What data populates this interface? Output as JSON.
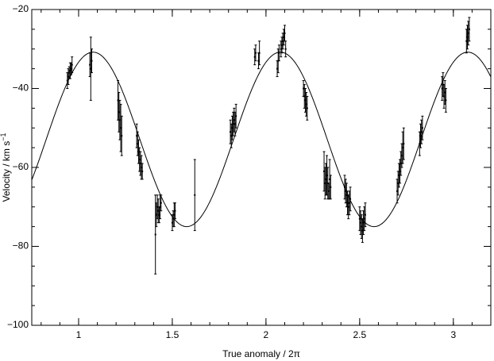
{
  "chart_data": {
    "type": "scatter",
    "title": "",
    "xlabel": "True anomaly / 2π",
    "ylabel_main": "Velocity / km s",
    "ylabel_superscript": "−1",
    "xlim": [
      0.75,
      3.2
    ],
    "ylim": [
      -100,
      -20
    ],
    "x_ticks": [
      1,
      1.5,
      2,
      2.5,
      3
    ],
    "x_tick_labels": [
      "1",
      "1.5",
      "2",
      "2.5",
      "3"
    ],
    "y_ticks": [
      -100,
      -80,
      -60,
      -40,
      -20
    ],
    "y_tick_labels": [
      "−100",
      "−80",
      "−60",
      "−40",
      "−20"
    ],
    "grid": false,
    "legend": "none",
    "model_curve": {
      "center": -52.9,
      "amplitude": 22.1,
      "period": 1.0,
      "phase_max": 0.077
    },
    "points": [
      {
        "x": 0.94,
        "y": -38,
        "err": 2
      },
      {
        "x": 0.945,
        "y": -37,
        "err": 2
      },
      {
        "x": 0.95,
        "y": -36,
        "err": 1.5
      },
      {
        "x": 0.955,
        "y": -35.5,
        "err": 2
      },
      {
        "x": 0.96,
        "y": -35,
        "err": 1.5
      },
      {
        "x": 0.965,
        "y": -34,
        "err": 2
      },
      {
        "x": 1.06,
        "y": -34,
        "err": 3
      },
      {
        "x": 1.065,
        "y": -35,
        "err": 8
      },
      {
        "x": 1.07,
        "y": -33,
        "err": 3
      },
      {
        "x": 1.21,
        "y": -43,
        "err": 5
      },
      {
        "x": 1.215,
        "y": -46,
        "err": 5
      },
      {
        "x": 1.22,
        "y": -48,
        "err": 5
      },
      {
        "x": 1.225,
        "y": -50,
        "err": 6
      },
      {
        "x": 1.23,
        "y": -52,
        "err": 5
      },
      {
        "x": 1.31,
        "y": -52,
        "err": 3
      },
      {
        "x": 1.315,
        "y": -54,
        "err": 3
      },
      {
        "x": 1.32,
        "y": -56,
        "err": 3
      },
      {
        "x": 1.325,
        "y": -58,
        "err": 3
      },
      {
        "x": 1.33,
        "y": -59,
        "err": 3
      },
      {
        "x": 1.335,
        "y": -60,
        "err": 3
      },
      {
        "x": 1.34,
        "y": -61,
        "err": 2
      },
      {
        "x": 1.41,
        "y": -77,
        "err": 10
      },
      {
        "x": 1.415,
        "y": -72,
        "err": 3
      },
      {
        "x": 1.42,
        "y": -70,
        "err": 3
      },
      {
        "x": 1.425,
        "y": -71,
        "err": 3
      },
      {
        "x": 1.43,
        "y": -72,
        "err": 2
      },
      {
        "x": 1.435,
        "y": -70,
        "err": 3
      },
      {
        "x": 1.44,
        "y": -69,
        "err": 2
      },
      {
        "x": 1.5,
        "y": -74,
        "err": 2
      },
      {
        "x": 1.505,
        "y": -73,
        "err": 2
      },
      {
        "x": 1.51,
        "y": -72,
        "err": 3
      },
      {
        "x": 1.515,
        "y": -71,
        "err": 2
      },
      {
        "x": 1.62,
        "y": -67,
        "err": 9
      },
      {
        "x": 1.81,
        "y": -51,
        "err": 3
      },
      {
        "x": 1.815,
        "y": -52,
        "err": 3
      },
      {
        "x": 1.82,
        "y": -50,
        "err": 3
      },
      {
        "x": 1.825,
        "y": -49,
        "err": 3
      },
      {
        "x": 1.83,
        "y": -48,
        "err": 3
      },
      {
        "x": 1.835,
        "y": -49,
        "err": 3
      },
      {
        "x": 1.84,
        "y": -47,
        "err": 3
      },
      {
        "x": 1.94,
        "y": -32,
        "err": 2
      },
      {
        "x": 1.945,
        "y": -31,
        "err": 2
      },
      {
        "x": 1.96,
        "y": -33,
        "err": 2
      },
      {
        "x": 1.965,
        "y": -31,
        "err": 3
      },
      {
        "x": 2.06,
        "y": -35,
        "err": 2
      },
      {
        "x": 2.065,
        "y": -33,
        "err": 3
      },
      {
        "x": 2.07,
        "y": -31,
        "err": 2
      },
      {
        "x": 2.08,
        "y": -30,
        "err": 2
      },
      {
        "x": 2.085,
        "y": -29,
        "err": 2
      },
      {
        "x": 2.09,
        "y": -28,
        "err": 2
      },
      {
        "x": 2.095,
        "y": -27,
        "err": 2
      },
      {
        "x": 2.1,
        "y": -26,
        "err": 2
      },
      {
        "x": 2.105,
        "y": -30,
        "err": 2
      },
      {
        "x": 2.2,
        "y": -40,
        "err": 2
      },
      {
        "x": 2.205,
        "y": -42,
        "err": 3
      },
      {
        "x": 2.21,
        "y": -43,
        "err": 3
      },
      {
        "x": 2.215,
        "y": -44,
        "err": 3
      },
      {
        "x": 2.22,
        "y": -45,
        "err": 3
      },
      {
        "x": 2.31,
        "y": -61,
        "err": 5
      },
      {
        "x": 2.315,
        "y": -64,
        "err": 4
      },
      {
        "x": 2.32,
        "y": -63,
        "err": 4
      },
      {
        "x": 2.325,
        "y": -62,
        "err": 5
      },
      {
        "x": 2.33,
        "y": -64,
        "err": 4
      },
      {
        "x": 2.335,
        "y": -66,
        "err": 2
      },
      {
        "x": 2.34,
        "y": -63,
        "err": 5
      },
      {
        "x": 2.345,
        "y": -65,
        "err": 3
      },
      {
        "x": 2.42,
        "y": -65,
        "err": 3
      },
      {
        "x": 2.425,
        "y": -66,
        "err": 3
      },
      {
        "x": 2.43,
        "y": -67,
        "err": 3
      },
      {
        "x": 2.435,
        "y": -69,
        "err": 3
      },
      {
        "x": 2.44,
        "y": -70,
        "err": 3
      },
      {
        "x": 2.445,
        "y": -69,
        "err": 3
      },
      {
        "x": 2.45,
        "y": -68,
        "err": 3
      },
      {
        "x": 2.5,
        "y": -73,
        "err": 3
      },
      {
        "x": 2.505,
        "y": -74,
        "err": 3
      },
      {
        "x": 2.51,
        "y": -75,
        "err": 3
      },
      {
        "x": 2.515,
        "y": -76,
        "err": 3
      },
      {
        "x": 2.52,
        "y": -74,
        "err": 3
      },
      {
        "x": 2.525,
        "y": -73,
        "err": 3
      },
      {
        "x": 2.53,
        "y": -72,
        "err": 3
      },
      {
        "x": 2.7,
        "y": -66,
        "err": 3
      },
      {
        "x": 2.705,
        "y": -64,
        "err": 3
      },
      {
        "x": 2.71,
        "y": -62,
        "err": 3
      },
      {
        "x": 2.715,
        "y": -61,
        "err": 3
      },
      {
        "x": 2.72,
        "y": -59,
        "err": 3
      },
      {
        "x": 2.725,
        "y": -57,
        "err": 3
      },
      {
        "x": 2.73,
        "y": -55,
        "err": 4
      },
      {
        "x": 2.735,
        "y": -54,
        "err": 4
      },
      {
        "x": 2.82,
        "y": -54,
        "err": 3
      },
      {
        "x": 2.825,
        "y": -52,
        "err": 3
      },
      {
        "x": 2.83,
        "y": -51,
        "err": 3
      },
      {
        "x": 2.835,
        "y": -50,
        "err": 3
      },
      {
        "x": 2.94,
        "y": -40,
        "err": 3
      },
      {
        "x": 2.945,
        "y": -39,
        "err": 3
      },
      {
        "x": 2.95,
        "y": -42,
        "err": 3
      },
      {
        "x": 2.955,
        "y": -41,
        "err": 3
      },
      {
        "x": 2.96,
        "y": -43,
        "err": 3
      },
      {
        "x": 3.07,
        "y": -28,
        "err": 3
      },
      {
        "x": 3.075,
        "y": -27,
        "err": 3
      },
      {
        "x": 3.08,
        "y": -26,
        "err": 3
      },
      {
        "x": 3.085,
        "y": -25,
        "err": 3
      }
    ]
  }
}
